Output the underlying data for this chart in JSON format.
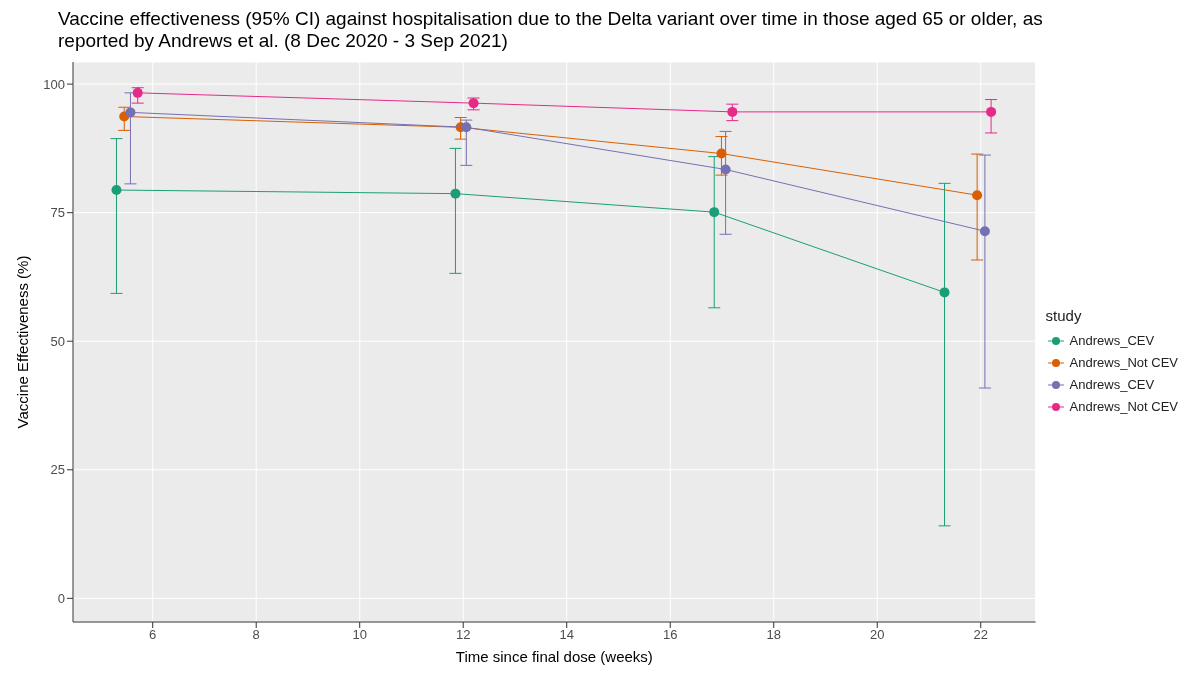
{
  "chart_data": {
    "type": "line",
    "title": "Vaccine effectiveness (95% CI) against hospitalisation due to the Delta variant over time in those aged 65 or older, as reported by Andrews et al. (8 Dec 2020 - 3 Sep 2021)",
    "xlabel": "Time since final dose (weeks)",
    "ylabel": "Vaccine Effectiveness (%)",
    "legend_title": "study",
    "legend": "right",
    "grid": true,
    "marker": "circle",
    "xlim": [
      4.46,
      23.06
    ],
    "xticks": [
      6,
      8,
      10,
      12,
      14,
      16,
      18,
      20,
      22
    ],
    "ylim": [
      -4.6,
      104.3
    ],
    "yticks": [
      0,
      25,
      50,
      75,
      100
    ],
    "series": [
      {
        "name": "Andrews_CEV",
        "color": "#1b9e77",
        "x": [
          5.3,
          11.85,
          16.85,
          21.3
        ],
        "values": [
          79.4,
          78.7,
          75.1,
          59.5
        ],
        "errors": [
          [
            59.3,
            89.4
          ],
          [
            63.2,
            87.5
          ],
          [
            56.5,
            85.9
          ],
          [
            14.1,
            80.7
          ]
        ]
      },
      {
        "name": "Andrews_Not CEV",
        "color": "#d95f02",
        "x": [
          5.45,
          11.95,
          16.99,
          21.93
        ],
        "values": [
          93.7,
          91.6,
          86.5,
          78.4
        ],
        "errors": [
          [
            91,
            95.5
          ],
          [
            89.3,
            93.5
          ],
          [
            82.3,
            89.8
          ],
          [
            65.8,
            86.4
          ]
        ]
      },
      {
        "name": "Andrews_CEV",
        "color": "#7570b3",
        "x": [
          5.57,
          12.06,
          17.07,
          22.08
        ],
        "values": [
          94.5,
          91.6,
          83.4,
          71.4
        ],
        "errors": [
          [
            80.6,
            98.3
          ],
          [
            84.2,
            93
          ],
          [
            70.8,
            90.8
          ],
          [
            40.9,
            86.2
          ]
        ]
      },
      {
        "name": "Andrews_Not CEV",
        "color": "#e7298a",
        "x": [
          5.71,
          12.2,
          17.2,
          22.2
        ],
        "values": [
          98.3,
          96.3,
          94.6,
          94.6
        ],
        "errors": [
          [
            96.3,
            99.3
          ],
          [
            95,
            97.3
          ],
          [
            92.9,
            96.1
          ],
          [
            90.5,
            97
          ]
        ]
      }
    ]
  }
}
